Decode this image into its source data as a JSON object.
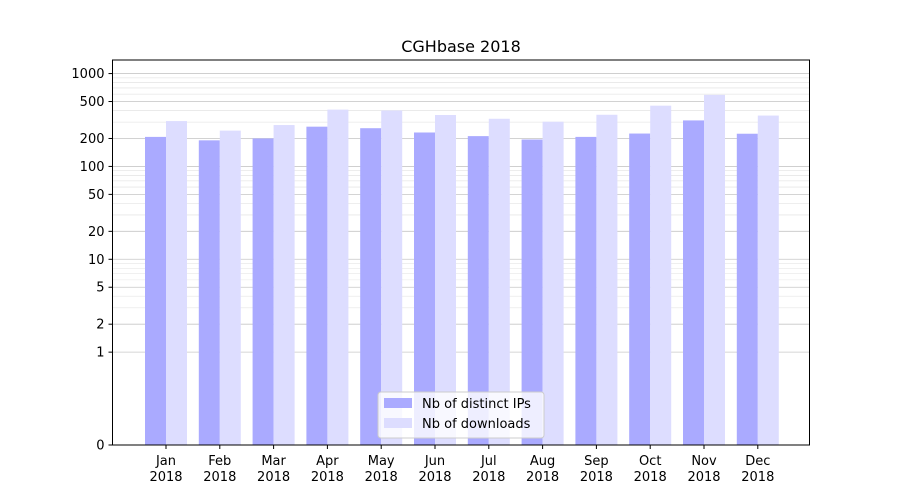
{
  "chart_data": {
    "type": "bar",
    "title": "CGHbase 2018",
    "xlabel": "",
    "ylabel": "",
    "yscale": "symlog",
    "ylim": [
      0,
      1400
    ],
    "y_ticks": [
      0,
      1,
      2,
      5,
      10,
      20,
      50,
      100,
      200,
      500,
      1000
    ],
    "grid": true,
    "legend_position": "lower-center",
    "categories": [
      "Jan\n2018",
      "Feb\n2018",
      "Mar\n2018",
      "Apr\n2018",
      "May\n2018",
      "Jun\n2018",
      "Jul\n2018",
      "Aug\n2018",
      "Sep\n2018",
      "Oct\n2018",
      "Nov\n2018",
      "Dec\n2018"
    ],
    "series": [
      {
        "name": "Nb of distinct IPs",
        "color": "#aaaaff",
        "values": [
          208,
          191,
          200,
          268,
          258,
          232,
          212,
          195,
          208,
          226,
          313,
          225
        ]
      },
      {
        "name": "Nb of downloads",
        "color": "#ddddff",
        "values": [
          308,
          243,
          279,
          409,
          400,
          358,
          326,
          303,
          360,
          451,
          590,
          353
        ]
      }
    ]
  }
}
